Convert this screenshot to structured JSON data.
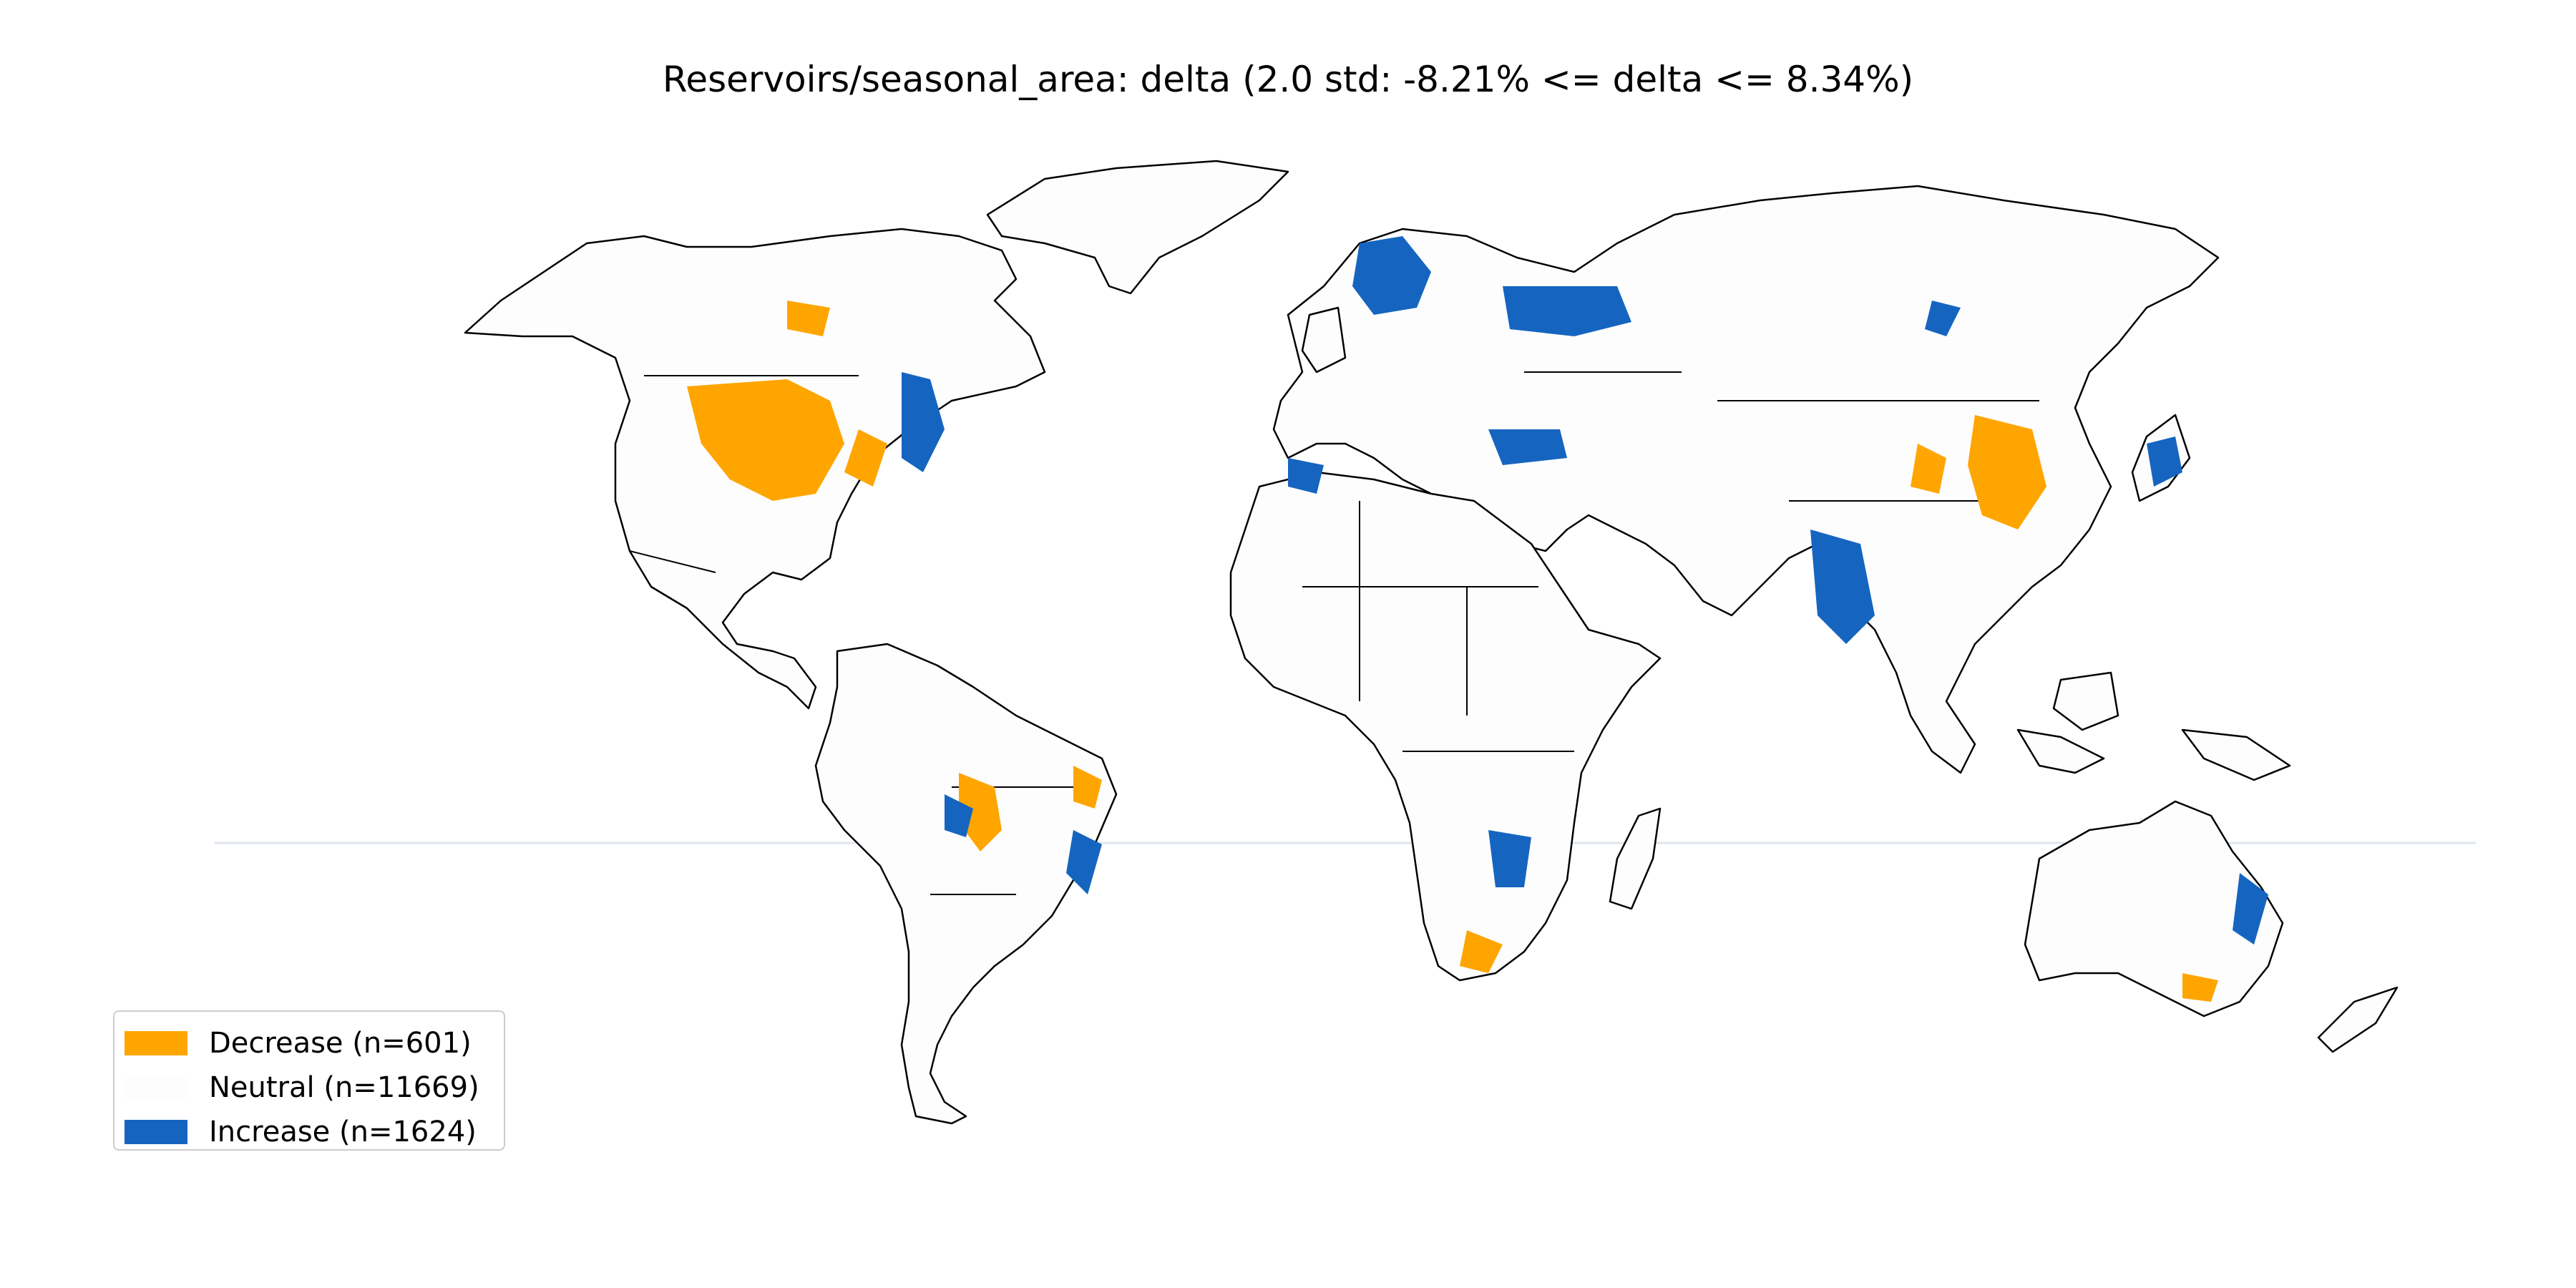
{
  "title": "Reservoirs/seasonal_area: delta (2.0 std: -8.21% <= delta <= 8.34%)",
  "colors": {
    "decrease": "#FFA500",
    "neutral": "#FDFDFD",
    "increase": "#1565C0",
    "border": "#000000"
  },
  "legend": {
    "placement": "lower-left",
    "items": [
      {
        "label": "Decrease (n=601)",
        "color": "#FFA500"
      },
      {
        "label": "Neutral (n=11669)",
        "color": "#FDFDFD"
      },
      {
        "label": "Increase (n=1624)",
        "color": "#1565C0"
      }
    ]
  },
  "map": {
    "projection": "equirectangular",
    "category_counts": {
      "decrease": 601,
      "neutral": 11669,
      "increase": 1624
    }
  }
}
